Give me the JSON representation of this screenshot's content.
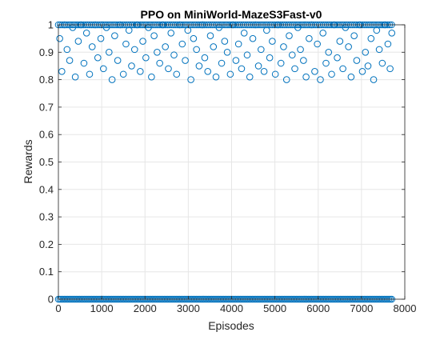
{
  "chart_data": {
    "type": "scatter",
    "title": "PPO on MiniWorld-MazeS3Fast-v0",
    "xlabel": "Episodes",
    "ylabel": "Rewards",
    "xlim": [
      0,
      8000
    ],
    "ylim": [
      0,
      1
    ],
    "xticks": [
      0,
      1000,
      2000,
      3000,
      4000,
      5000,
      6000,
      7000,
      8000
    ],
    "yticks": [
      0,
      0.1,
      0.2,
      0.3,
      0.4,
      0.5,
      0.6,
      0.7,
      0.8,
      0.9,
      1
    ],
    "xtick_labels": [
      "0",
      "1000",
      "2000",
      "3000",
      "4000",
      "5000",
      "6000",
      "7000",
      "8000"
    ],
    "ytick_labels": [
      "0",
      "0.1",
      "0.2",
      "0.3",
      "0.4",
      "0.5",
      "0.6",
      "0.7",
      "0.8",
      "0.9",
      "1"
    ],
    "grid": true,
    "marker": "open-circle",
    "series_color": "#0072bd",
    "episodes_total": 7700,
    "series": [
      {
        "x": [
          30,
          80,
          140,
          200,
          260,
          330,
          390,
          460,
          520,
          590,
          650,
          720,
          780,
          850,
          910,
          980,
          1040,
          1110,
          1170,
          1240,
          1300,
          1370,
          1430,
          1500,
          1560,
          1630,
          1690,
          1760,
          1820,
          1890,
          1950,
          2020,
          2080,
          2150,
          2210,
          2280,
          2340,
          2410,
          2470,
          2540,
          2600,
          2670,
          2730,
          2800,
          2860,
          2930,
          2990,
          3060,
          3120,
          3190,
          3250,
          3320,
          3380,
          3450,
          3510,
          3580,
          3640,
          3710,
          3770,
          3840,
          3900,
          3970,
          4030,
          4100,
          4160,
          4230,
          4290,
          4360,
          4420,
          4490,
          4550,
          4620,
          4680,
          4750,
          4810,
          4880,
          4940,
          5010,
          5070,
          5140,
          5200,
          5270,
          5330,
          5400,
          5460,
          5530,
          5590,
          5660,
          5720,
          5790,
          5850,
          5920,
          5980,
          6050,
          6110,
          6180,
          6240,
          6310,
          6370,
          6440,
          6500,
          6570,
          6630,
          6700,
          6760,
          6830,
          6890,
          6960,
          7020,
          7090,
          7150,
          7220,
          7280,
          7350,
          7410,
          7480,
          7540,
          7610,
          7660,
          7700
        ],
        "y": [
          0.95,
          0.83,
          1,
          0.91,
          0.87,
          0.99,
          0.81,
          0.94,
          1,
          0.86,
          0.97,
          0.82,
          0.92,
          1,
          0.88,
          0.95,
          0.84,
          0.99,
          0.9,
          0.8,
          0.96,
          0.87,
          1,
          0.82,
          0.93,
          0.98,
          0.85,
          0.91,
          1,
          0.83,
          0.94,
          0.88,
          0.99,
          0.81,
          0.96,
          0.9,
          0.86,
          1,
          0.92,
          0.84,
          0.97,
          0.89,
          0.82,
          1,
          0.93,
          0.87,
          0.98,
          0.8,
          0.95,
          0.91,
          0.85,
          1,
          0.88,
          0.83,
          0.96,
          0.92,
          0.81,
          0.99,
          0.86,
          0.94,
          0.9,
          0.82,
          1,
          0.87,
          0.93,
          0.84,
          0.97,
          0.89,
          0.81,
          0.95,
          1,
          0.85,
          0.91,
          0.83,
          0.98,
          0.88,
          0.94,
          0.82,
          1,
          0.86,
          0.92,
          0.8,
          0.96,
          0.89,
          0.84,
          0.99,
          0.91,
          0.87,
          0.81,
          0.95,
          1,
          0.83,
          0.93,
          0.8,
          0.97,
          0.86,
          0.9,
          0.82,
          1,
          0.88,
          0.94,
          0.84,
          0.99,
          0.92,
          0.81,
          0.96,
          0.87,
          1,
          0.83,
          0.9,
          0.85,
          0.95,
          0.8,
          0.98,
          0.91,
          0.86,
          1,
          0.93,
          0.84,
          0.97
        ]
      }
    ]
  }
}
